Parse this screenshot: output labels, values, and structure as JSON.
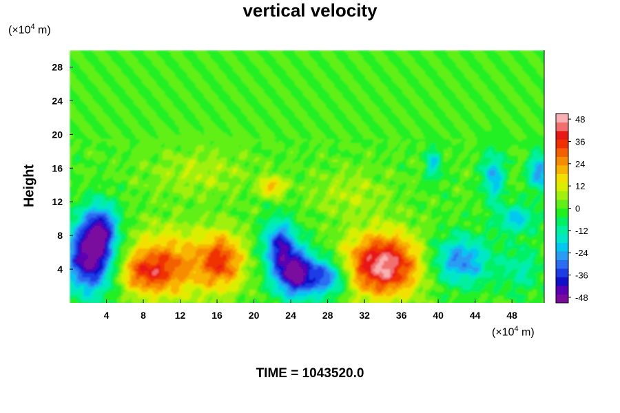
{
  "chart_data": {
    "type": "heatmap",
    "title": "vertical velocity",
    "ylabel": "Height",
    "xunit": {
      "prefix": "(×10",
      "exp": "4",
      "suffix": " m)"
    },
    "yunit": {
      "prefix": "(×10",
      "exp": "4",
      "suffix": " m)"
    },
    "xlim": [
      0,
      51.5
    ],
    "ylim": [
      0,
      30
    ],
    "xticks": [
      4,
      8,
      12,
      16,
      20,
      24,
      28,
      32,
      36,
      40,
      44,
      48
    ],
    "yticks": [
      4,
      8,
      12,
      16,
      20,
      24,
      28
    ],
    "colorbar": {
      "ticks": [
        48,
        36,
        24,
        12,
        0,
        -12,
        -24,
        -36,
        -48
      ],
      "range": [
        -51,
        51
      ],
      "colors": [
        "#7a0a9e",
        "#5a00b4",
        "#1010c8",
        "#1e3ce6",
        "#2a6cf2",
        "#2a9cf2",
        "#00c8f0",
        "#00e6c8",
        "#00f0a0",
        "#00f064",
        "#20f020",
        "#60f018",
        "#a0f010",
        "#d8f000",
        "#f4e000",
        "#f8b400",
        "#f88c00",
        "#f46000",
        "#f03000",
        "#e81818",
        "#f07070",
        "#f8b0b0"
      ]
    },
    "features": [
      {
        "x": 2.2,
        "y": 5.5,
        "sx": 1.8,
        "sy": 3.0,
        "value": -50
      },
      {
        "x": 3.5,
        "y": 9.0,
        "sx": 1.2,
        "sy": 2.0,
        "value": -28
      },
      {
        "x": 10.5,
        "y": 4.5,
        "sx": 3.0,
        "sy": 2.8,
        "value": 28
      },
      {
        "x": 8.0,
        "y": 3.5,
        "sx": 1.8,
        "sy": 1.5,
        "value": 18
      },
      {
        "x": 16.5,
        "y": 5.0,
        "sx": 1.7,
        "sy": 2.4,
        "value": 32
      },
      {
        "x": 22.8,
        "y": 7.0,
        "sx": 1.2,
        "sy": 2.0,
        "value": -34
      },
      {
        "x": 24.5,
        "y": 3.5,
        "sx": 1.6,
        "sy": 2.0,
        "value": -48
      },
      {
        "x": 28.0,
        "y": 3.0,
        "sx": 1.5,
        "sy": 1.5,
        "value": -30
      },
      {
        "x": 34.0,
        "y": 4.5,
        "sx": 2.8,
        "sy": 2.6,
        "value": 48
      },
      {
        "x": 42.5,
        "y": 5.0,
        "sx": 2.2,
        "sy": 2.0,
        "value": -28
      },
      {
        "x": 46.0,
        "y": 15.0,
        "sx": 0.8,
        "sy": 2.0,
        "value": -24
      },
      {
        "x": 51.0,
        "y": 15.5,
        "sx": 0.8,
        "sy": 1.5,
        "value": -28
      },
      {
        "x": 39.5,
        "y": 16.5,
        "sx": 0.6,
        "sy": 1.4,
        "value": -18
      },
      {
        "x": 48.5,
        "y": 10.0,
        "sx": 1.5,
        "sy": 1.2,
        "value": -20
      },
      {
        "x": 22.0,
        "y": 13.8,
        "sx": 0.9,
        "sy": 0.8,
        "value": 22
      },
      {
        "x": 30.5,
        "y": 13.0,
        "sx": 3.0,
        "sy": 2.0,
        "value": 8
      },
      {
        "x": 14.0,
        "y": 15.5,
        "sx": 4.0,
        "sy": 2.0,
        "value": 8
      },
      {
        "x": 49.0,
        "y": 4.0,
        "sx": 1.5,
        "sy": 2.0,
        "value": -12
      }
    ]
  },
  "time_label": {
    "prefix": "TIME = ",
    "value": "1043520.0"
  }
}
